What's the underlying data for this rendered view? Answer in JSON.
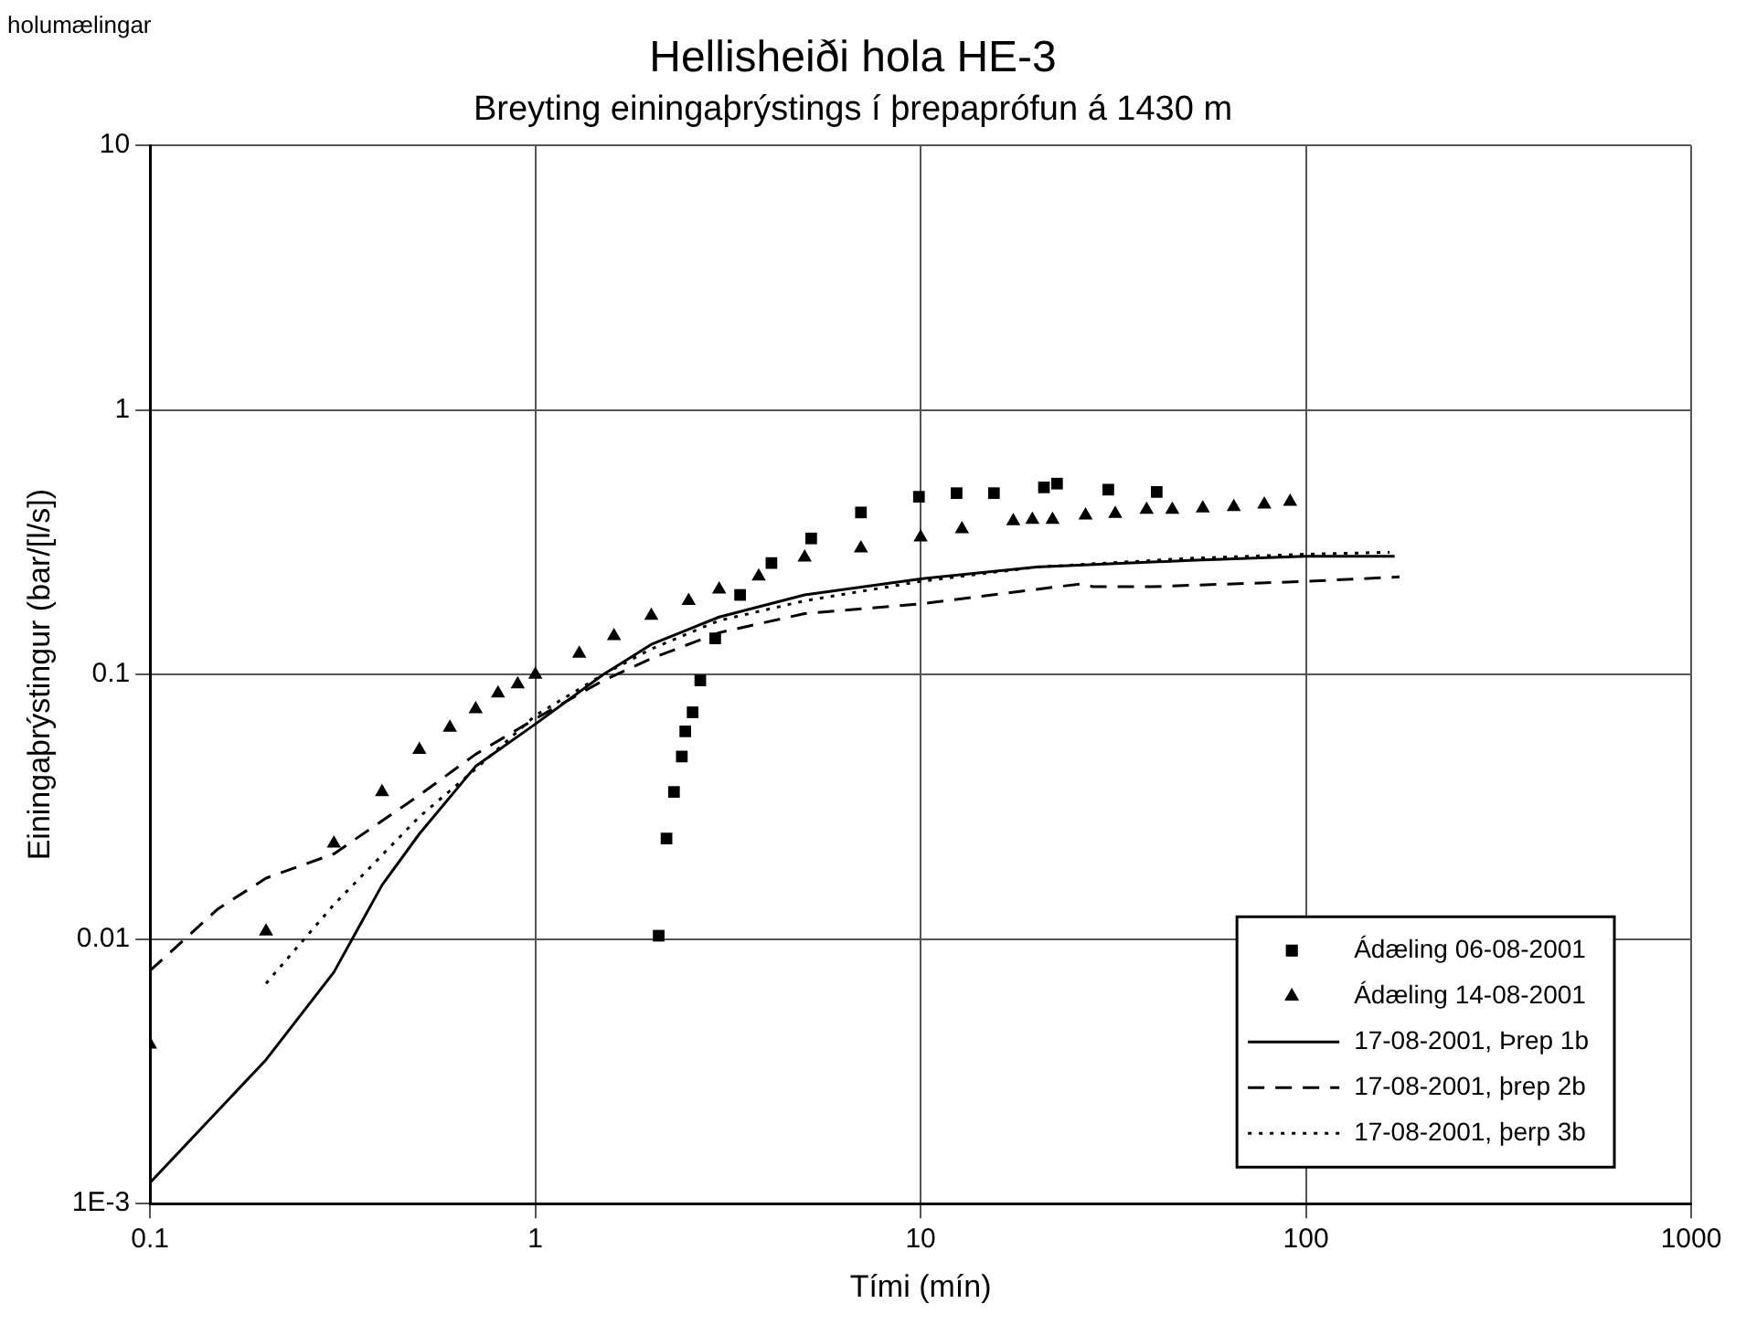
{
  "chart_data": {
    "type": "line",
    "title": "Hellisheiði hola HE-3",
    "subtitle": "Breyting einingaþrýstings í þrepaprófun á 1430 m",
    "xlabel": "Tími (mín)",
    "ylabel": "Einingaþrýstingur (bar/[l/s])",
    "annotations": [
      "holumælingar"
    ],
    "log": "xy",
    "grid": true,
    "legend": "bottom right",
    "xlim": [
      0.1,
      1000
    ],
    "xticks": [
      0.1,
      1,
      10,
      100,
      1000
    ],
    "ylim": [
      0.001,
      10
    ],
    "yticks": [
      {
        "value": 0.001,
        "label": "1E-3"
      },
      0.01,
      0.1,
      1,
      10
    ],
    "series": [
      {
        "name": "Ádæling 06-08-2001",
        "type": "scatter",
        "marker": "square",
        "color": "#000000",
        "x": [
          2.09,
          2.19,
          2.29,
          2.4,
          2.45,
          2.56,
          2.68,
          2.93,
          3.4,
          4.1,
          5.2,
          7.0,
          9.9,
          12.4,
          15.5,
          20.9,
          22.6,
          30.7,
          41
        ],
        "values": [
          0.0103,
          0.024,
          0.036,
          0.049,
          0.061,
          0.072,
          0.095,
          0.137,
          0.2,
          0.264,
          0.327,
          0.41,
          0.47,
          0.485,
          0.485,
          0.51,
          0.527,
          0.5,
          0.49
        ]
      },
      {
        "name": "Ádæling 14-08-2001",
        "type": "scatter",
        "marker": "triangle",
        "color": "#000000",
        "x": [
          0.1,
          0.2,
          0.3,
          0.4,
          0.5,
          0.6,
          0.7,
          0.8,
          0.9,
          1.0,
          1.3,
          1.6,
          2,
          2.5,
          3,
          3.8,
          5,
          7,
          10,
          12.8,
          17.4,
          19.5,
          22,
          26.8,
          32,
          38.6,
          45,
          54,
          65,
          78,
          91
        ],
        "values": [
          0.004,
          0.0107,
          0.023,
          0.036,
          0.052,
          0.063,
          0.074,
          0.085,
          0.092,
          0.1,
          0.12,
          0.14,
          0.167,
          0.19,
          0.21,
          0.235,
          0.277,
          0.3,
          0.33,
          0.355,
          0.38,
          0.385,
          0.385,
          0.4,
          0.405,
          0.42,
          0.42,
          0.425,
          0.43,
          0.44,
          0.45
        ]
      },
      {
        "name": "17-08-2001, Þrep 1b",
        "line_style": "solid",
        "marker": "none",
        "color": "#000000",
        "x": [
          0.1,
          0.2,
          0.3,
          0.4,
          0.5,
          0.7,
          1,
          1.5,
          2,
          3,
          5,
          10,
          20,
          50,
          100,
          170
        ],
        "values": [
          0.0012,
          0.0035,
          0.0075,
          0.016,
          0.025,
          0.045,
          0.065,
          0.1,
          0.13,
          0.165,
          0.2,
          0.23,
          0.255,
          0.27,
          0.28,
          0.28
        ]
      },
      {
        "name": "17-08-2001, þrep 2b",
        "line_style": "dashed",
        "marker": "none",
        "color": "#000000",
        "x": [
          0.1,
          0.15,
          0.2,
          0.3,
          0.5,
          0.7,
          1,
          1.5,
          2,
          3,
          5,
          10,
          20,
          26,
          28,
          40,
          100,
          175
        ],
        "values": [
          0.0076,
          0.013,
          0.017,
          0.021,
          0.035,
          0.05,
          0.068,
          0.095,
          0.115,
          0.144,
          0.17,
          0.185,
          0.21,
          0.22,
          0.215,
          0.215,
          0.225,
          0.234
        ]
      },
      {
        "name": "17-08-2001, þerp 3b",
        "line_style": "dotted",
        "marker": "none",
        "color": "#000000",
        "x": [
          0.2,
          0.3,
          0.5,
          0.7,
          1,
          1.5,
          2,
          3,
          5,
          10,
          20,
          50,
          100,
          165
        ],
        "values": [
          0.0068,
          0.0135,
          0.029,
          0.044,
          0.07,
          0.1,
          0.125,
          0.16,
          0.19,
          0.225,
          0.255,
          0.275,
          0.285,
          0.29
        ]
      }
    ]
  }
}
